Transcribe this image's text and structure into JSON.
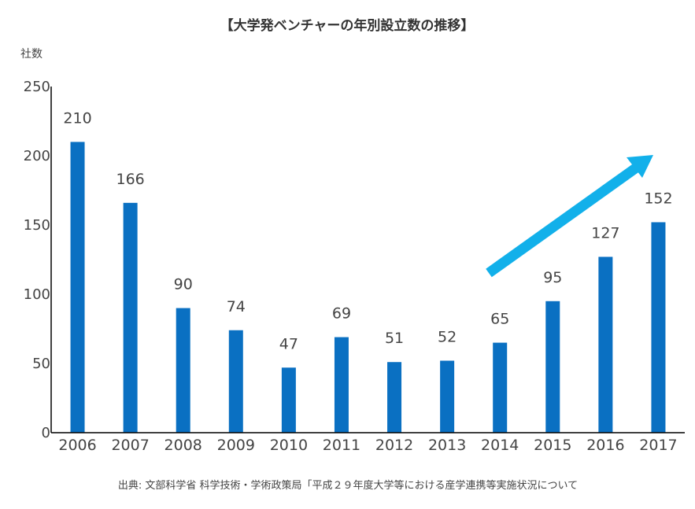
{
  "chart_data": {
    "type": "bar",
    "title": "【大学発ベンチャーの年別設立数の推移】",
    "ylabel": "社数",
    "xlabel": "",
    "categories": [
      "2006",
      "2007",
      "2008",
      "2009",
      "2010",
      "2011",
      "2012",
      "2013",
      "2014",
      "2015",
      "2016",
      "2017"
    ],
    "values": [
      210,
      166,
      90,
      74,
      47,
      69,
      51,
      52,
      65,
      95,
      127,
      152
    ],
    "ylim": [
      0,
      250
    ],
    "yticks": [
      0,
      50,
      100,
      150,
      200,
      250
    ],
    "grid": false,
    "annotation": "upward-trend-arrow",
    "colors": {
      "bar": "#0a70c2",
      "arrow": "#12b0ea",
      "axis": "#000000"
    }
  },
  "source": "出典: 文部科学省 科学技術・学術政策局「平成２９年度大学等における産学連携等実施状況について"
}
